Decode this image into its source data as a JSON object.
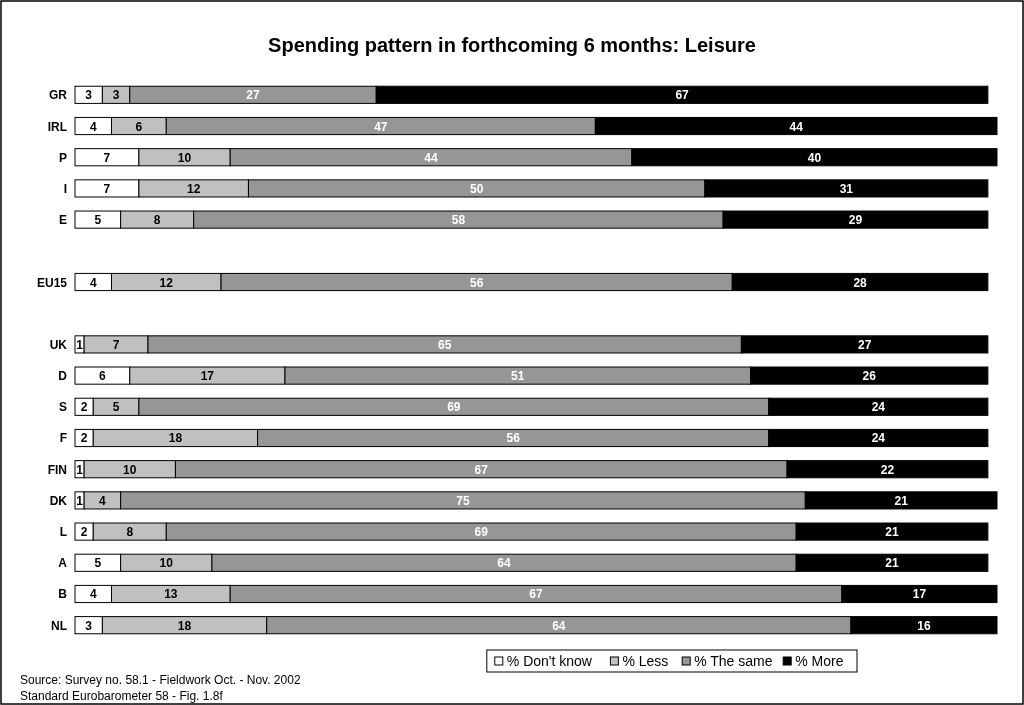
{
  "chart_data": {
    "type": "bar",
    "orientation": "horizontal",
    "stacked": true,
    "title": "Spending pattern in forthcoming 6 months: Leisure",
    "categories": [
      "GR",
      "IRL",
      "P",
      "I",
      "E",
      null,
      "EU15",
      null,
      "UK",
      "D",
      "S",
      "F",
      "FIN",
      "DK",
      "L",
      "A",
      "B",
      "NL"
    ],
    "series": [
      {
        "name": "% Don't know",
        "color": "#ffffff",
        "values": [
          3,
          4,
          7,
          7,
          5,
          null,
          4,
          null,
          1,
          6,
          2,
          2,
          1,
          1,
          2,
          5,
          4,
          3
        ]
      },
      {
        "name": "% Less",
        "color": "#c0c0c0",
        "values": [
          3,
          6,
          10,
          12,
          8,
          null,
          12,
          null,
          7,
          17,
          5,
          18,
          10,
          4,
          8,
          10,
          13,
          18
        ]
      },
      {
        "name": "% The same",
        "color": "#969696",
        "values": [
          27,
          47,
          44,
          50,
          58,
          null,
          56,
          null,
          65,
          51,
          69,
          56,
          67,
          75,
          69,
          64,
          67,
          64
        ]
      },
      {
        "name": "% More",
        "color": "#000000",
        "values": [
          67,
          44,
          40,
          31,
          29,
          null,
          28,
          null,
          27,
          26,
          24,
          24,
          22,
          21,
          21,
          21,
          17,
          16
        ]
      }
    ],
    "data_labels": true,
    "legend": "bottom",
    "annotations": [
      "Source: Survey no. 58.1 -  Fieldwork Oct. - Nov. 2002",
      "Standard Eurobarometer 58 - Fig. 1.8f"
    ]
  }
}
